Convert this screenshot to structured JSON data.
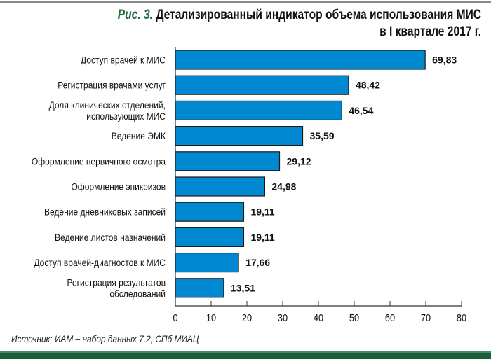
{
  "chart_data": {
    "type": "bar",
    "orientation": "horizontal",
    "title_prefix": "Рис. 3.",
    "title": "Детализированный индикатор объема использования МИС",
    "title_line2": "в I квартале 2017 г.",
    "categories": [
      [
        "Доступ врачей к МИС"
      ],
      [
        "Регистрация врачами услуг"
      ],
      [
        "Доля клинических отделений,",
        "использующих МИС"
      ],
      [
        "Ведение ЭМК"
      ],
      [
        "Оформление первичного осмотра"
      ],
      [
        "Оформление эпикризов"
      ],
      [
        "Ведение дневниковых записей"
      ],
      [
        "Ведение листов назначений"
      ],
      [
        "Доступ врачей-диагностов к МИС"
      ],
      [
        "Регистрация результатов",
        "обследований"
      ]
    ],
    "values": [
      69.83,
      48.42,
      46.54,
      35.59,
      29.12,
      24.98,
      19.11,
      19.11,
      17.66,
      13.51
    ],
    "value_labels": [
      "69,83",
      "48,42",
      "46,54",
      "35,59",
      "29,12",
      "24,98",
      "19,11",
      "19,11",
      "17,66",
      "13,51"
    ],
    "xticks": [
      0,
      10,
      20,
      30,
      40,
      50,
      60,
      70,
      80
    ],
    "xlim": [
      0,
      80
    ],
    "xlabel": "",
    "ylabel": "",
    "grid": false,
    "bar_color": "#0088d1"
  },
  "source": "Источник: ИАМ – набор данных 7.2, СПб МИАЦ"
}
